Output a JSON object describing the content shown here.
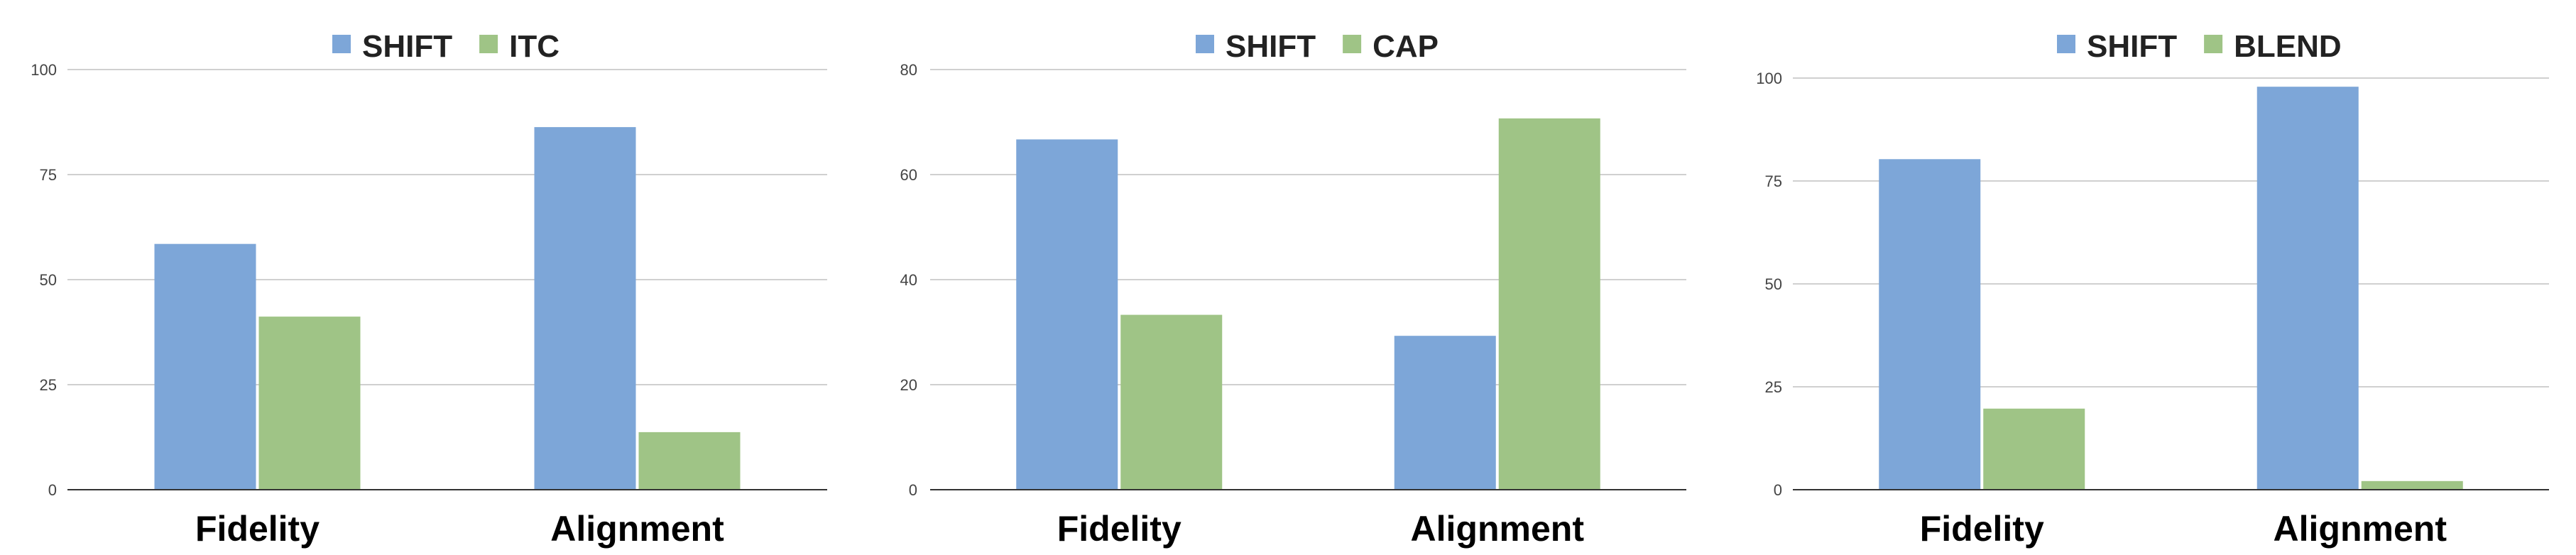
{
  "colors": {
    "shift": "#7DA6D8",
    "other": "#9FC486"
  },
  "chart_data": [
    {
      "type": "bar",
      "title": "",
      "xlabel": "",
      "ylabel": "",
      "categories": [
        "Fidelity",
        "Alignment"
      ],
      "ylim": [
        0,
        100
      ],
      "yticks": [
        0,
        25,
        50,
        75,
        100
      ],
      "grid": true,
      "legend_position": "top",
      "series": [
        {
          "name": "SHIFT",
          "values": [
            58.5,
            86.3
          ],
          "color": "#7DA6D8"
        },
        {
          "name": "ITC",
          "values": [
            41.2,
            13.7
          ],
          "color": "#9FC486"
        }
      ]
    },
    {
      "type": "bar",
      "title": "",
      "xlabel": "",
      "ylabel": "",
      "categories": [
        "Fidelity",
        "Alignment"
      ],
      "ylim": [
        0,
        80
      ],
      "yticks": [
        0,
        20,
        40,
        60,
        80
      ],
      "grid": true,
      "legend_position": "top",
      "series": [
        {
          "name": "SHIFT",
          "values": [
            66.7,
            29.3
          ],
          "color": "#7DA6D8"
        },
        {
          "name": "CAP",
          "values": [
            33.3,
            70.7
          ],
          "color": "#9FC486"
        }
      ]
    },
    {
      "type": "bar",
      "title": "",
      "xlabel": "",
      "ylabel": "",
      "categories": [
        "Fidelity",
        "Alignment"
      ],
      "ylim": [
        0,
        100
      ],
      "yticks": [
        0,
        25,
        50,
        75,
        100
      ],
      "grid": true,
      "legend_position": "top",
      "series": [
        {
          "name": "SHIFT",
          "values": [
            80.3,
            97.9
          ],
          "color": "#7DA6D8"
        },
        {
          "name": "BLEND",
          "values": [
            19.7,
            2.1
          ],
          "color": "#9FC486"
        }
      ]
    }
  ]
}
